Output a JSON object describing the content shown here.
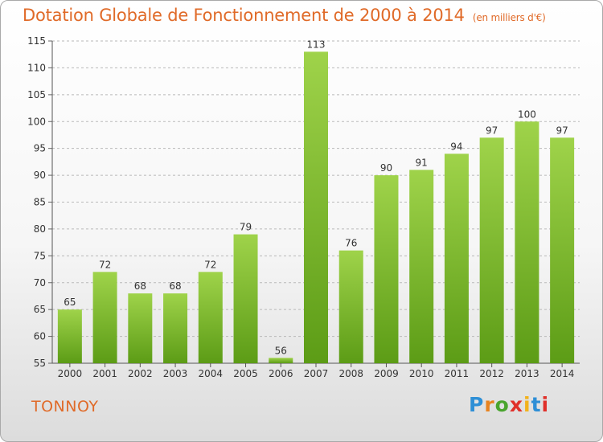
{
  "header": {
    "title": "Dotation Globale de Fonctionnement de 2000 à 2014",
    "subtitle": "(en milliers d'€)"
  },
  "commune": "TONNOY",
  "logo": {
    "text": "Proxiti",
    "letter_colors": [
      "#2e8fd6",
      "#e8831f",
      "#4aa52e",
      "#e0302a",
      "#f2b21c",
      "#2e8fd6",
      "#e0302a"
    ]
  },
  "colors": {
    "title": "#e06a28",
    "bar_light": "#9fd34a",
    "bar_dark": "#5c9c16",
    "grid": "#b9b9b9"
  },
  "chart_data": {
    "type": "bar",
    "categories": [
      "2000",
      "2001",
      "2002",
      "2003",
      "2004",
      "2005",
      "2006",
      "2007",
      "2008",
      "2009",
      "2010",
      "2011",
      "2012",
      "2013",
      "2014"
    ],
    "values": [
      65,
      72,
      68,
      68,
      72,
      79,
      56,
      113,
      76,
      90,
      91,
      94,
      97,
      100,
      97
    ],
    "data_labels": [
      "65",
      "72",
      "68",
      "68",
      "72",
      "79",
      "56",
      "113",
      "76",
      "90",
      "91",
      "94",
      "97",
      "100",
      "97"
    ],
    "title": "Dotation Globale de Fonctionnement de 2000 à 2014",
    "subtitle": "(en milliers d'€)",
    "xlabel": "",
    "ylabel": "",
    "ylim": [
      55,
      115
    ],
    "yticks": [
      55,
      60,
      65,
      70,
      75,
      80,
      85,
      90,
      95,
      100,
      105,
      110,
      115
    ],
    "grid": "horizontal dashed",
    "legend": "none"
  }
}
